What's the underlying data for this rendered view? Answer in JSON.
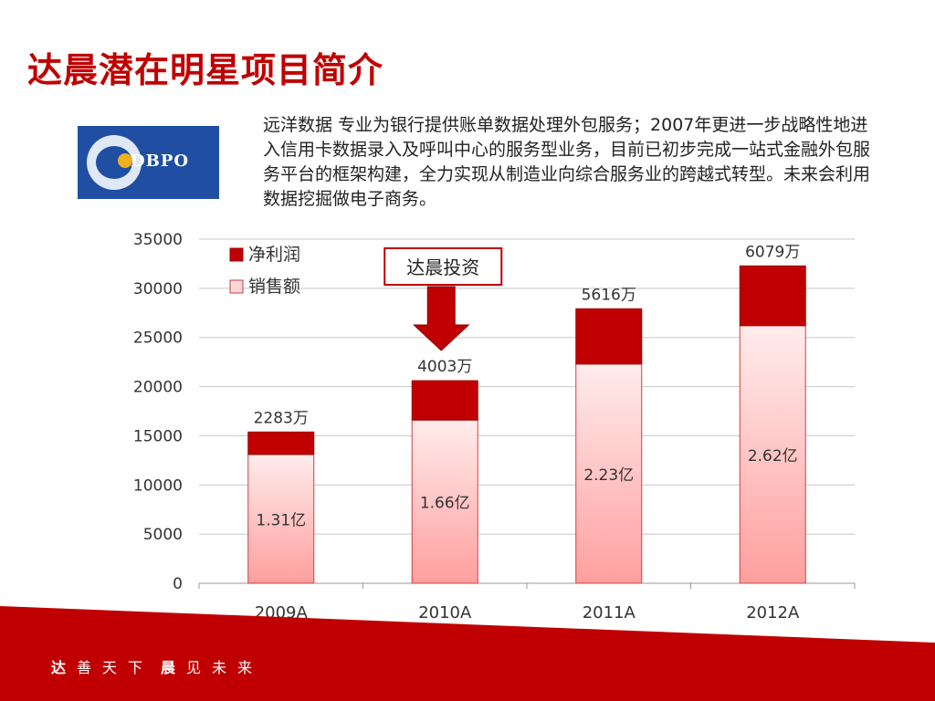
{
  "title": "达晨潜在明星项目简介",
  "logo": {
    "text": "DBPO"
  },
  "description": "远洋数据 专业为银行提供账单数据处理外包服务；2007年更进一步战略性地进入信用卡数据录入及呼叫中心的服务型业务，目前已初步完成一站式金融外包服务平台的框架构建，全力实现从制造业向综合服务业的跨越式转型。未来会利用数据挖掘做电子商务。",
  "chart_data": {
    "type": "bar",
    "stacked": true,
    "categories": [
      "2009A",
      "2010A",
      "2011A",
      "2012A"
    ],
    "series": [
      {
        "name": "销售额",
        "values": [
          13100,
          16600,
          22300,
          26200
        ],
        "labels": [
          "1.31亿",
          "1.66亿",
          "2.23亿",
          "2.62亿"
        ],
        "color": "#ffc9c9"
      },
      {
        "name": "净利润",
        "values": [
          2283,
          4003,
          5616,
          6079
        ],
        "labels": [
          "2283万",
          "4003万",
          "5616万",
          "6079万"
        ],
        "color": "#c00000"
      }
    ],
    "ylim": [
      0,
      35000
    ],
    "yticks": [
      0,
      5000,
      10000,
      15000,
      20000,
      25000,
      30000,
      35000
    ],
    "grid": true,
    "legend_position": "top-left",
    "annotation": {
      "text": "达晨投资",
      "target": "2010A"
    }
  },
  "footer": {
    "left_bold": "达",
    "left_rest": "善天下",
    "right_bold": "晨",
    "right_rest": "见未来"
  }
}
